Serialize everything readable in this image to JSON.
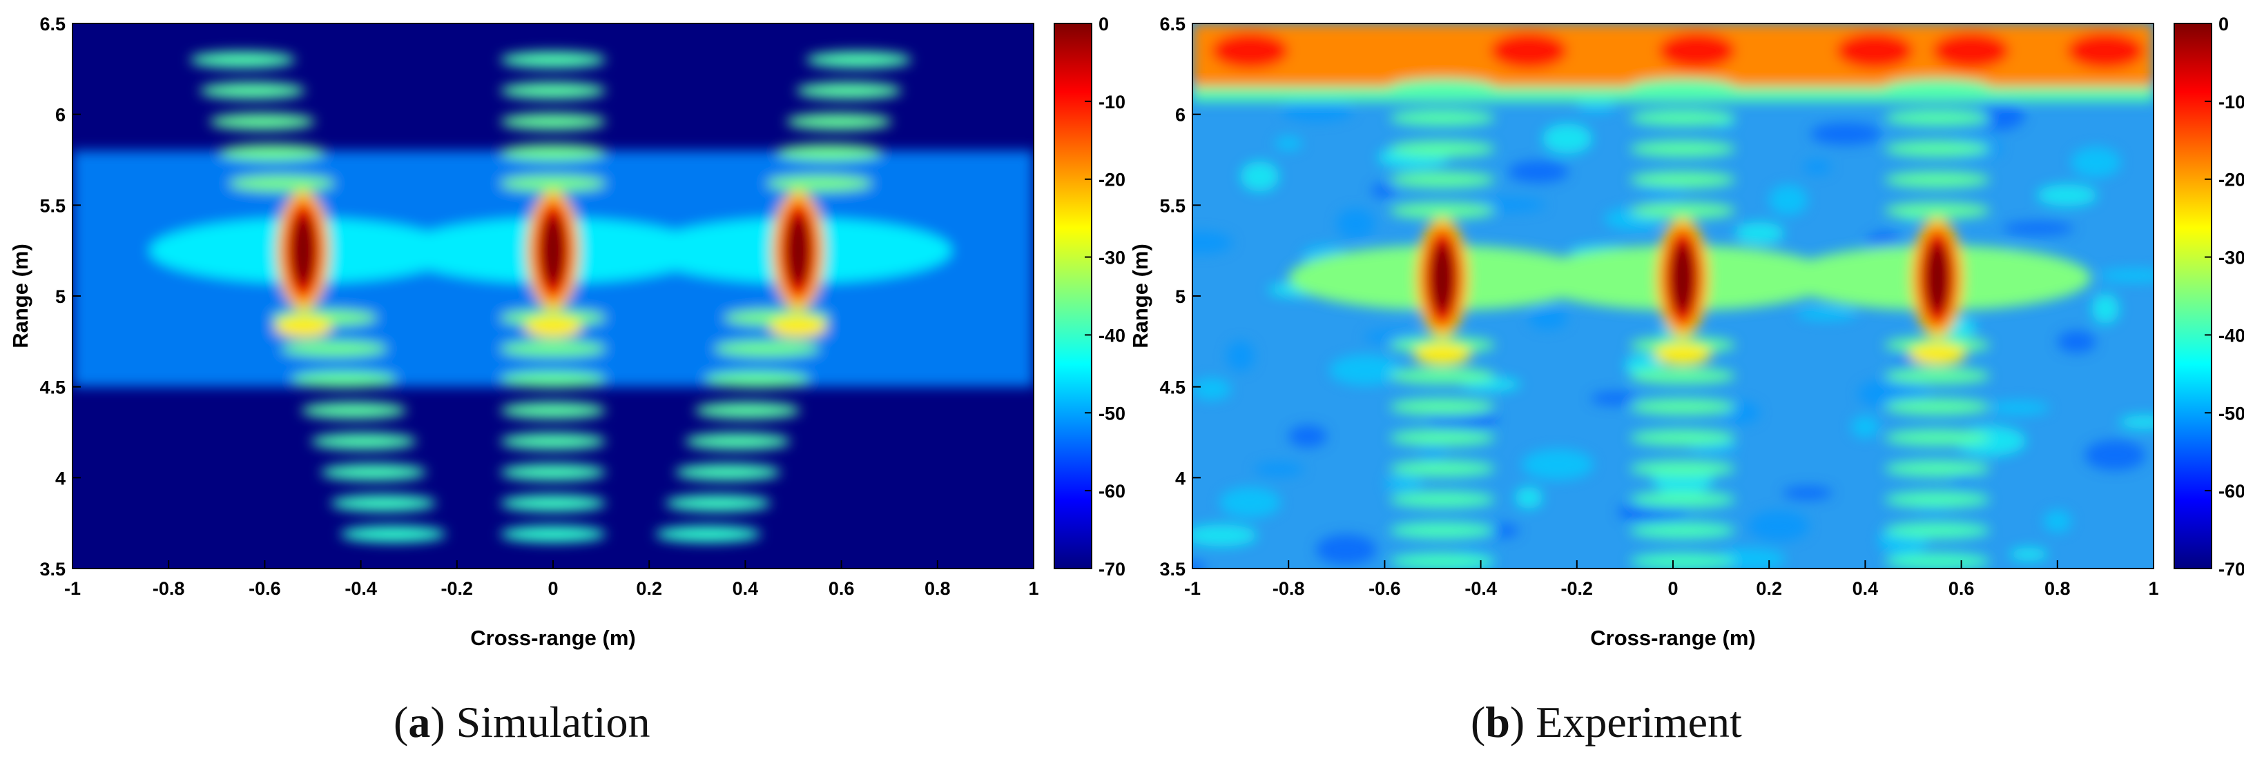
{
  "colormap": [
    "#00007f",
    "#0000ff",
    "#00ffff",
    "#ffff00",
    "#ff0000",
    "#7f0000"
  ],
  "chart_data": [
    {
      "type": "heatmap",
      "panel_letter": "a",
      "caption": "Simulation",
      "xlabel": "Cross-range (m)",
      "ylabel": "Range (m)",
      "xlim": [
        -1,
        1
      ],
      "ylim": [
        3.5,
        6.5
      ],
      "xticks": [
        "-1",
        "-0.8",
        "-0.6",
        "-0.4",
        "-0.2",
        "0",
        "0.2",
        "0.4",
        "0.6",
        "0.8",
        "1"
      ],
      "yticks": [
        "3.5",
        "4",
        "4.5",
        "5",
        "5.5",
        "6",
        "6.5"
      ],
      "colorbar": {
        "min": -70,
        "max": 0,
        "ticks": [
          "0",
          "-10",
          "-20",
          "-30",
          "-40",
          "-50",
          "-60",
          "-70"
        ]
      },
      "targets": [
        {
          "x": -0.52,
          "y": 5.25,
          "peak_db": 0
        },
        {
          "x": 0.0,
          "y": 5.25,
          "peak_db": 0
        },
        {
          "x": 0.51,
          "y": 5.25,
          "peak_db": 0
        }
      ]
    },
    {
      "type": "heatmap",
      "panel_letter": "b",
      "caption": "Experiment",
      "xlabel": "Cross-range (m)",
      "ylabel": "Range (m)",
      "xlim": [
        -1,
        1
      ],
      "ylim": [
        3.5,
        6.5
      ],
      "xticks": [
        "-1",
        "-0.8",
        "-0.6",
        "-0.4",
        "-0.2",
        "0",
        "0.2",
        "0.4",
        "0.6",
        "0.8",
        "1"
      ],
      "yticks": [
        "3.5",
        "4",
        "4.5",
        "5",
        "5.5",
        "6",
        "6.5"
      ],
      "colorbar": {
        "min": -70,
        "max": 0,
        "ticks": [
          "0",
          "-10",
          "-20",
          "-30",
          "-40",
          "-50",
          "-60",
          "-70"
        ]
      },
      "targets": [
        {
          "x": -0.48,
          "y": 5.1,
          "peak_db": 0
        },
        {
          "x": 0.02,
          "y": 5.1,
          "peak_db": 0
        },
        {
          "x": 0.55,
          "y": 5.1,
          "peak_db": 0
        }
      ]
    }
  ]
}
